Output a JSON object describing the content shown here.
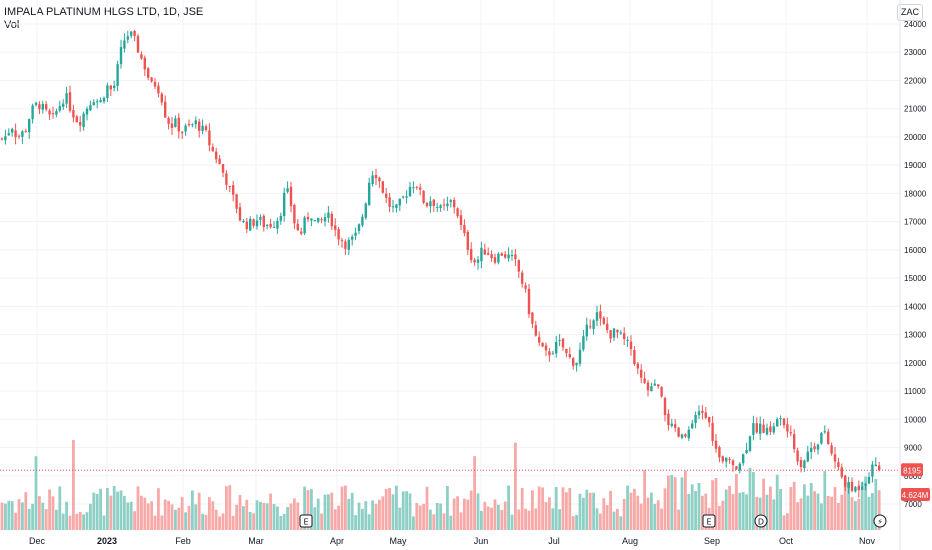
{
  "header": {
    "title": "IMPALA PLATINUM HLGS LTD, 1D, JSE",
    "volume_label": "Vol",
    "currency": "ZAC"
  },
  "colors": {
    "up": "#26a69a",
    "down": "#ef5350",
    "up_volume": "#8ecfc6",
    "down_volume": "#f7a9a7",
    "price_line": "#ef5350",
    "grid": "#f0f3fa"
  },
  "chart_data": {
    "type": "candlestick",
    "price_axis": {
      "ticks": [
        7000,
        8000,
        9000,
        10000,
        11000,
        12000,
        13000,
        14000,
        15000,
        16000,
        17000,
        18000,
        19000,
        20000,
        21000,
        22000,
        23000,
        24000
      ],
      "range": [
        6500,
        24200
      ]
    },
    "time_axis": [
      "Dec",
      "2023",
      "Feb",
      "Mar",
      "Apr",
      "May",
      "Jun",
      "Jul",
      "Aug",
      "Sep",
      "Oct",
      "Nov"
    ],
    "last_price": {
      "value": "8195",
      "numeric": 8195
    },
    "last_volume": {
      "value": "4.624M"
    },
    "price_path": [
      [
        0,
        19900
      ],
      [
        5,
        20000
      ],
      [
        12,
        20400
      ],
      [
        17,
        20000
      ],
      [
        25,
        20200
      ],
      [
        31,
        20900
      ],
      [
        38,
        21200
      ],
      [
        45,
        20900
      ],
      [
        52,
        20600
      ],
      [
        58,
        21000
      ],
      [
        65,
        21500
      ],
      [
        72,
        20900
      ],
      [
        79,
        20500
      ],
      [
        86,
        21000
      ],
      [
        93,
        21400
      ],
      [
        100,
        21200
      ],
      [
        107,
        21800
      ],
      [
        113,
        21600
      ],
      [
        118,
        22500
      ],
      [
        122,
        23200
      ],
      [
        126,
        23600
      ],
      [
        131,
        23600
      ],
      [
        136,
        23300
      ],
      [
        141,
        22800
      ],
      [
        146,
        22400
      ],
      [
        151,
        21800
      ],
      [
        156,
        21900
      ],
      [
        161,
        21500
      ],
      [
        166,
        20700
      ],
      [
        171,
        20400
      ],
      [
        176,
        20500
      ],
      [
        181,
        20200
      ],
      [
        186,
        20300
      ],
      [
        191,
        20400
      ],
      [
        196,
        20500
      ],
      [
        201,
        20300
      ],
      [
        206,
        20100
      ],
      [
        211,
        19600
      ],
      [
        216,
        19300
      ],
      [
        221,
        18900
      ],
      [
        226,
        18500
      ],
      [
        231,
        18000
      ],
      [
        236,
        17600
      ],
      [
        241,
        17000
      ],
      [
        246,
        16900
      ],
      [
        252,
        16950
      ],
      [
        258,
        17100
      ],
      [
        264,
        16900
      ],
      [
        270,
        16900
      ],
      [
        276,
        17000
      ],
      [
        281,
        17400
      ],
      [
        286,
        18200
      ],
      [
        291,
        17600
      ],
      [
        296,
        16700
      ],
      [
        301,
        16600
      ],
      [
        306,
        17100
      ],
      [
        311,
        17300
      ],
      [
        316,
        16900
      ],
      [
        321,
        17000
      ],
      [
        326,
        17200
      ],
      [
        331,
        17100
      ],
      [
        336,
        16600
      ],
      [
        341,
        16400
      ],
      [
        346,
        16200
      ],
      [
        351,
        16300
      ],
      [
        356,
        16500
      ],
      [
        361,
        17000
      ],
      [
        366,
        17800
      ],
      [
        371,
        18800
      ],
      [
        376,
        18700
      ],
      [
        381,
        18300
      ],
      [
        386,
        17800
      ],
      [
        391,
        17500
      ],
      [
        396,
        17400
      ],
      [
        401,
        17700
      ],
      [
        406,
        18000
      ],
      [
        411,
        18300
      ],
      [
        416,
        18400
      ],
      [
        421,
        17900
      ],
      [
        426,
        17600
      ],
      [
        431,
        17800
      ],
      [
        436,
        17600
      ],
      [
        441,
        17400
      ],
      [
        446,
        17500
      ],
      [
        451,
        17700
      ],
      [
        456,
        17500
      ],
      [
        461,
        16800
      ],
      [
        466,
        16300
      ],
      [
        471,
        15800
      ],
      [
        476,
        15500
      ],
      [
        481,
        15900
      ],
      [
        486,
        16000
      ],
      [
        491,
        15800
      ],
      [
        496,
        15700
      ],
      [
        501,
        15900
      ],
      [
        506,
        15800
      ],
      [
        511,
        15700
      ],
      [
        516,
        15500
      ],
      [
        521,
        15000
      ],
      [
        526,
        14400
      ],
      [
        531,
        13500
      ],
      [
        536,
        12900
      ],
      [
        541,
        12500
      ],
      [
        546,
        12300
      ],
      [
        551,
        12400
      ],
      [
        556,
        12600
      ],
      [
        561,
        12700
      ],
      [
        566,
        12300
      ],
      [
        571,
        12100
      ],
      [
        576,
        12000
      ],
      [
        581,
        12500
      ],
      [
        586,
        13100
      ],
      [
        591,
        13500
      ],
      [
        596,
        13800
      ],
      [
        601,
        13400
      ],
      [
        606,
        13200
      ],
      [
        611,
        13000
      ],
      [
        616,
        13100
      ],
      [
        621,
        12900
      ],
      [
        626,
        12700
      ],
      [
        631,
        12500
      ],
      [
        636,
        11900
      ],
      [
        641,
        11400
      ],
      [
        646,
        11100
      ],
      [
        651,
        11000
      ],
      [
        656,
        11300
      ],
      [
        661,
        10700
      ],
      [
        666,
        10100
      ],
      [
        671,
        9700
      ],
      [
        676,
        9500
      ],
      [
        681,
        9300
      ],
      [
        686,
        9400
      ],
      [
        691,
        9700
      ],
      [
        696,
        10000
      ],
      [
        701,
        10300
      ],
      [
        706,
        10100
      ],
      [
        711,
        9600
      ],
      [
        716,
        8900
      ],
      [
        721,
        8400
      ],
      [
        726,
        8500
      ],
      [
        731,
        8550
      ],
      [
        736,
        8400
      ],
      [
        741,
        8500
      ],
      [
        746,
        9000
      ],
      [
        751,
        9700
      ],
      [
        756,
        9700
      ],
      [
        761,
        9800
      ],
      [
        766,
        9500
      ],
      [
        771,
        9700
      ],
      [
        776,
        9900
      ],
      [
        781,
        10000
      ],
      [
        786,
        9700
      ],
      [
        791,
        9300
      ],
      [
        796,
        8800
      ],
      [
        801,
        8400
      ],
      [
        806,
        8700
      ],
      [
        811,
        9000
      ],
      [
        816,
        9100
      ],
      [
        821,
        9500
      ],
      [
        826,
        9400
      ],
      [
        831,
        8800
      ],
      [
        836,
        8400
      ],
      [
        841,
        8000
      ],
      [
        846,
        7700
      ],
      [
        851,
        7500
      ],
      [
        856,
        7550
      ],
      [
        861,
        7700
      ],
      [
        866,
        7900
      ],
      [
        871,
        8200
      ],
      [
        876,
        8450
      ],
      [
        880,
        8195
      ]
    ],
    "volume_spikes": [
      [
        35,
        0.82
      ],
      [
        73,
        1.0
      ],
      [
        475,
        0.82
      ],
      [
        516,
        0.97
      ],
      [
        749,
        0.69
      ],
      [
        765,
        0.57
      ]
    ],
    "events": [
      {
        "label": "E",
        "kind": "earnings"
      },
      {
        "label": "E",
        "kind": "earnings"
      },
      {
        "label": "D",
        "kind": "dividend"
      },
      {
        "label": "⚡",
        "kind": "split"
      }
    ]
  }
}
